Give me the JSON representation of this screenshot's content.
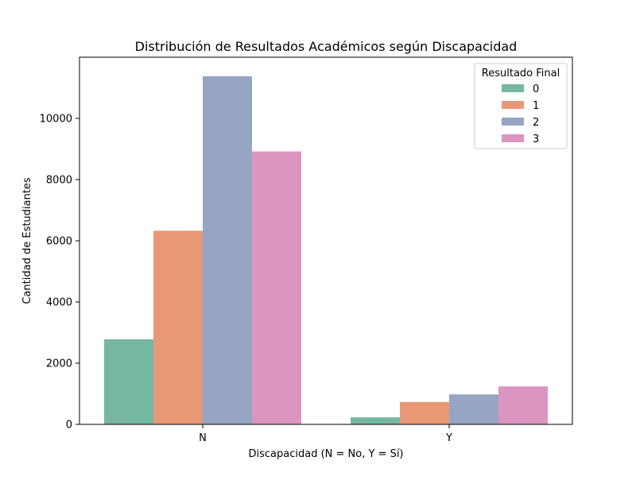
{
  "chart_data": {
    "type": "bar",
    "title": "Distribución de Resultados Académicos según Discapacidad",
    "xlabel": "Discapacidad (N = No, Y = Sí)",
    "ylabel": "Cantidad de Estudiantes",
    "categories": [
      "N",
      "Y"
    ],
    "ylim": [
      0,
      12000
    ],
    "yticks": [
      0,
      2000,
      4000,
      6000,
      8000,
      10000
    ],
    "ytick_labels": [
      "0",
      "2000",
      "4000",
      "6000",
      "8000",
      "10000"
    ],
    "grid": false,
    "legend": {
      "title": "Resultado Final",
      "placement": "top-right"
    },
    "series": [
      {
        "name": "0",
        "color": "#76b7a1",
        "values": [
          2780,
          230
        ]
      },
      {
        "name": "1",
        "color": "#e99876",
        "values": [
          6330,
          730
        ]
      },
      {
        "name": "2",
        "color": "#97a5c4",
        "values": [
          11380,
          980
        ]
      },
      {
        "name": "3",
        "color": "#db95c0",
        "values": [
          8920,
          1240
        ]
      }
    ]
  }
}
